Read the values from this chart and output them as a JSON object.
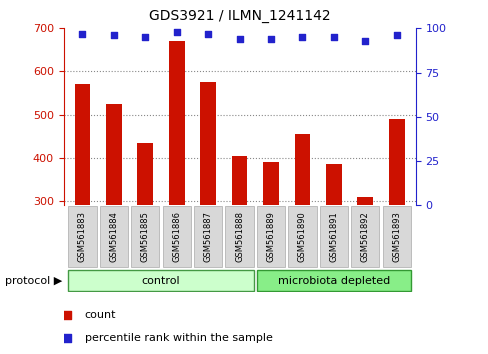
{
  "title": "GDS3921 / ILMN_1241142",
  "samples": [
    "GSM561883",
    "GSM561884",
    "GSM561885",
    "GSM561886",
    "GSM561887",
    "GSM561888",
    "GSM561889",
    "GSM561890",
    "GSM561891",
    "GSM561892",
    "GSM561893"
  ],
  "counts": [
    570,
    525,
    435,
    670,
    575,
    405,
    390,
    455,
    385,
    310,
    490
  ],
  "percentiles": [
    97,
    96,
    95,
    98,
    97,
    94,
    94,
    95,
    95,
    93,
    96
  ],
  "ylim_left": [
    290,
    700
  ],
  "ylim_right": [
    0,
    100
  ],
  "bar_color": "#cc1100",
  "dot_color": "#2222cc",
  "grid_color": "#888888",
  "bg_color": "#ffffff",
  "axis_bg": "#f0f0f0",
  "left_axis_color": "#cc1100",
  "right_axis_color": "#2222cc",
  "control_group": [
    "GSM561883",
    "GSM561884",
    "GSM561885",
    "GSM561886",
    "GSM561887",
    "GSM561888"
  ],
  "microbiota_group": [
    "GSM561889",
    "GSM561890",
    "GSM561891",
    "GSM561892",
    "GSM561893"
  ],
  "control_label": "control",
  "microbiota_label": "microbiota depleted",
  "protocol_label": "protocol",
  "legend_count_label": "count",
  "legend_pct_label": "percentile rank within the sample",
  "control_color": "#ccffcc",
  "microbiota_color": "#88ee88",
  "tick_yticks_left": [
    300,
    400,
    500,
    600,
    700
  ],
  "tick_yticks_right": [
    0,
    25,
    50,
    75,
    100
  ]
}
